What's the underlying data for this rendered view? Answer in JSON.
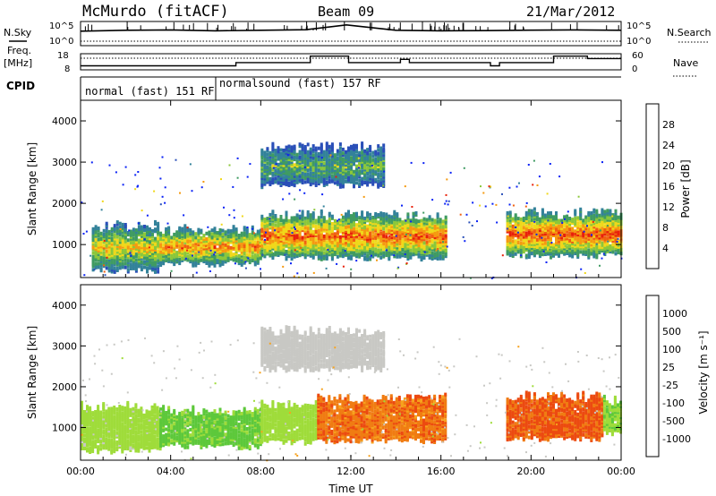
{
  "header": {
    "station": "McMurdo (fitACF)",
    "beam": "Beam 09",
    "date": "21/Mar/2012"
  },
  "side_labels": {
    "nsky": "N.Sky",
    "nsearch": "N.Search",
    "freq_line1": "Freq.",
    "freq_line2": "[MHz]",
    "nave": "Nave",
    "cpid": "CPID"
  },
  "cpid_modes": [
    {
      "label": "normal (fast) 151 RF",
      "start_hour": 0,
      "end_hour": 6
    },
    {
      "label": "normalsound (fast) 157 RF",
      "start_hour": 6,
      "end_hour": 24
    }
  ],
  "noise_axis": {
    "left_ticks": [
      "10^5",
      "10^0"
    ],
    "right_ticks": [
      "10^5",
      "10^0"
    ]
  },
  "freq_axis": {
    "left_ticks": [
      "18",
      "8"
    ],
    "right_ticks": [
      "60",
      "0"
    ]
  },
  "x_axis": {
    "label": "Time UT",
    "ticks": [
      "00:00",
      "04:00",
      "08:00",
      "12:00",
      "16:00",
      "20:00",
      "00:00"
    ],
    "range_hours": [
      0,
      24
    ]
  },
  "colors": {
    "black": "#000000",
    "power_scale": [
      "#0a22f5",
      "#2a4fb8",
      "#33829a",
      "#3f9b62",
      "#8bc73a",
      "#f0d81a",
      "#f59a10",
      "#f06010",
      "#e8200a"
    ],
    "velocity_scale": [
      "#2a55cc",
      "#2f8f82",
      "#5dc83b",
      "#9fdc3a",
      "#c8c8c4",
      "#f7a21d",
      "#f07c12",
      "#ec4a10",
      "#e8100a"
    ]
  },
  "chart_data": [
    {
      "type": "line",
      "name": "noise",
      "title": "",
      "series": [
        {
          "name": "N.Sky",
          "x": [
            0,
            2,
            4,
            6,
            8,
            10,
            11.8,
            14,
            16,
            18,
            20,
            22,
            24
          ],
          "y": [
            1000,
            1500,
            1800,
            1200,
            1500,
            2000,
            20000,
            1500,
            1200,
            1300,
            1600,
            1800,
            1500
          ]
        },
        {
          "name": "N.Search",
          "x": [
            0,
            4,
            8,
            12,
            16,
            20,
            24
          ],
          "y": [
            1,
            1,
            1,
            1,
            1,
            1,
            1
          ]
        }
      ],
      "ylim": [
        1,
        100000
      ],
      "yscale": "log"
    },
    {
      "type": "line",
      "name": "frequency_and_nave",
      "series": [
        {
          "name": "Freq. [MHz]",
          "x": [
            0,
            6.9,
            6.9,
            10.2,
            10.2,
            11.9,
            11.9,
            14.2,
            14.2,
            14.6,
            14.6,
            18.2,
            18.2,
            18.6,
            18.6,
            21.0,
            21.0,
            22.5,
            22.5,
            24
          ],
          "y": [
            10.5,
            10.5,
            12.5,
            12.5,
            16.5,
            16.5,
            12.5,
            12.5,
            14.5,
            14.5,
            12.5,
            12.5,
            10.5,
            10.5,
            12.5,
            12.5,
            16.5,
            16.5,
            15.0,
            15.0
          ]
        },
        {
          "name": "Nave",
          "x": [
            0,
            24
          ],
          "y": [
            30,
            30
          ]
        }
      ],
      "ylim_left": [
        8,
        18
      ],
      "ylim_right": [
        0,
        60
      ]
    },
    {
      "type": "heatmap",
      "name": "power",
      "ylabel": "Slant Range [km]",
      "xlabel": "",
      "xlim": [
        0,
        24
      ],
      "ylim": [
        200,
        4500
      ],
      "yticks": [
        1000,
        2000,
        3000,
        4000
      ],
      "colorbar": {
        "label": "Power [dB]",
        "ticks": [
          4,
          8,
          12,
          16,
          20,
          24,
          28
        ],
        "range": [
          0,
          30
        ]
      },
      "regions": [
        {
          "x0": 0.5,
          "x1": 3.5,
          "y0": 450,
          "y1": 1500,
          "value": 18
        },
        {
          "x0": 3.5,
          "x1": 8,
          "y0": 600,
          "y1": 1400,
          "value": 22
        },
        {
          "x0": 8,
          "x1": 16.2,
          "y0": 750,
          "y1": 1750,
          "value": 24
        },
        {
          "x0": 18.9,
          "x1": 24,
          "y0": 800,
          "y1": 1800,
          "value": 25
        },
        {
          "x0": 8,
          "x1": 13.5,
          "y0": 2500,
          "y1": 3400,
          "value": 12
        }
      ]
    },
    {
      "type": "heatmap",
      "name": "velocity",
      "ylabel": "Slant Range [km]",
      "xlabel": "Time UT",
      "xlim": [
        0,
        24
      ],
      "ylim": [
        200,
        4500
      ],
      "yticks": [
        1000,
        2000,
        3000,
        4000
      ],
      "colorbar": {
        "label": "Velocity [m s⁻¹]",
        "ticks": [
          "1000",
          "500",
          "100",
          "25",
          "-25",
          "-100",
          "-500",
          "-1000"
        ]
      },
      "regions": [
        {
          "x0": 0,
          "x1": 3.5,
          "y0": 500,
          "y1": 1550,
          "value": 60
        },
        {
          "x0": 3.5,
          "x1": 8,
          "y0": 600,
          "y1": 1450,
          "value": 150
        },
        {
          "x0": 8,
          "x1": 10.5,
          "y0": 700,
          "y1": 1600,
          "value": 40
        },
        {
          "x0": 10.5,
          "x1": 16.2,
          "y0": 750,
          "y1": 1750,
          "value": -200
        },
        {
          "x0": 18.9,
          "x1": 23.2,
          "y0": 800,
          "y1": 1800,
          "value": -300
        },
        {
          "x0": 23.2,
          "x1": 24,
          "y0": 900,
          "y1": 1700,
          "value": 80
        },
        {
          "x0": 8,
          "x1": 13.5,
          "y0": 2500,
          "y1": 3400,
          "value": 0
        }
      ]
    }
  ]
}
